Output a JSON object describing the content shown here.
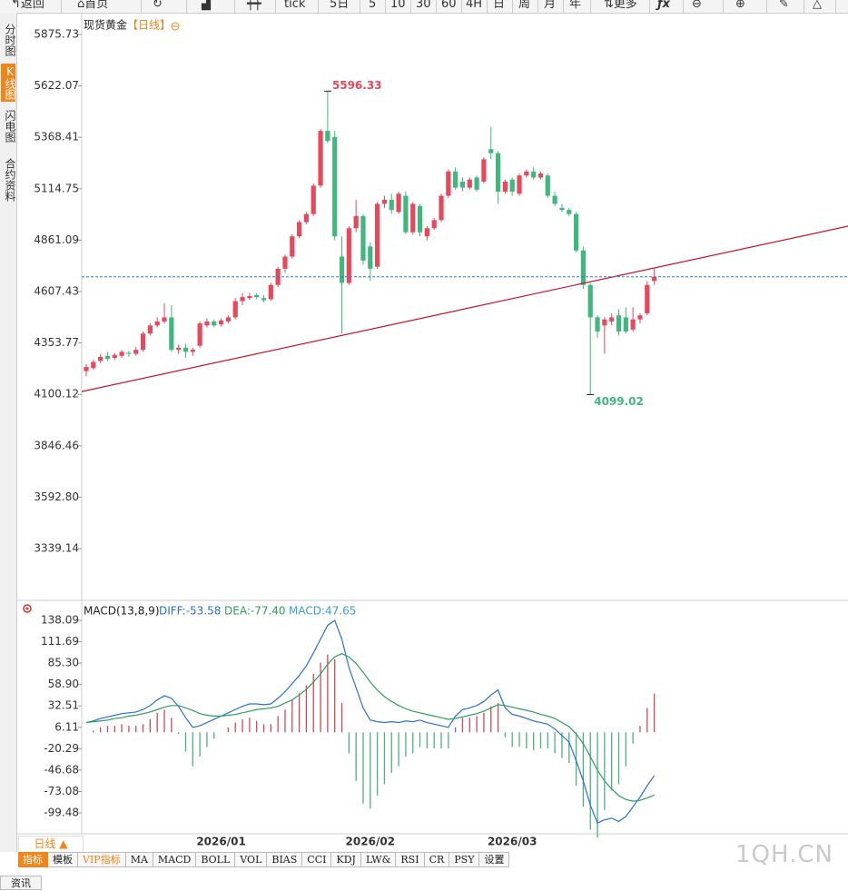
{
  "toolbar": [
    "返回",
    "首页",
    "tick",
    "5日",
    "5",
    "10",
    "30",
    "60",
    "4H",
    "日",
    "周",
    "月",
    "年",
    "更多"
  ],
  "sidebar": [
    "分时图",
    "K线图",
    "闪电图",
    "合约资料"
  ],
  "period_button": "日线 ▲",
  "indicator_tabs": [
    "指标",
    "模板",
    "VIP指标",
    "MA",
    "MACD",
    "BOLL",
    "VOL",
    "BIAS",
    "CCI",
    "KDJ",
    "LW&",
    "RSI",
    "CR",
    "PSY",
    "设置"
  ],
  "watermark": "1QH.CN",
  "footer_tab": "资讯",
  "chart_data": [
    {
      "type": "candlestick",
      "title": "现货黄金",
      "subtitle": "【日线】",
      "up_color": "#e8475c",
      "down_color": "#3fb77d",
      "ylim": [
        3088.2,
        5947.4
      ],
      "yticks": [
        5875.73,
        5622.07,
        5368.41,
        5114.75,
        4861.09,
        4607.43,
        4353.77,
        4100.12,
        3846.46,
        {
          "value": 3592.8,
          "label": "3592.80"
        },
        3339.14
      ],
      "open": [
        4215,
        4230,
        4265,
        4290,
        4280,
        4290,
        4305,
        4300,
        4320,
        4400,
        4440,
        4460,
        4480,
        4320,
        4330,
        4310,
        4340,
        4440,
        4460,
        4445,
        4460,
        4480,
        4560,
        4575,
        4590,
        4575,
        4570,
        4640,
        4720,
        4780,
        4880,
        4950,
        4990,
        5130,
        5400,
        5370,
        4780,
        4650,
        4920,
        4980,
        4830,
        4730,
        5040,
        5060,
        5000,
        5080,
        4900,
        5030,
        4880,
        4920,
        4960,
        5080,
        5200,
        5150,
        5120,
        5170,
        5150,
        5310,
        5290,
        5100,
        5160,
        5090,
        5180,
        5200,
        5170,
        5180,
        5080,
        5020,
        5010,
        4990,
        4810,
        4640,
        4480,
        4440,
        4460,
        4490,
        4480,
        4420,
        4470,
        4500,
        4660
      ],
      "high": [
        4250,
        4270,
        4300,
        4310,
        4305,
        4320,
        4315,
        4335,
        4410,
        4450,
        4480,
        4550,
        4540,
        4345,
        4350,
        4330,
        4460,
        4475,
        4470,
        4475,
        4490,
        4575,
        4600,
        4600,
        4600,
        4590,
        4650,
        4730,
        4790,
        4890,
        4960,
        5000,
        5140,
        5410,
        5596.33,
        5400,
        4880,
        4930,
        5060,
        4990,
        4850,
        5050,
        5080,
        5090,
        5100,
        5100,
        5050,
        5040,
        4930,
        4970,
        5090,
        5210,
        5220,
        5170,
        5170,
        5180,
        5270,
        5420,
        5300,
        5160,
        5170,
        5190,
        5210,
        5220,
        5200,
        5190,
        5100,
        5040,
        5020,
        5000,
        4830,
        4650,
        4490,
        4480,
        4500,
        4520,
        4530,
        4530,
        4500,
        4660,
        4720
      ],
      "low": [
        4190,
        4220,
        4255,
        4265,
        4270,
        4280,
        4285,
        4290,
        4310,
        4390,
        4430,
        4450,
        4310,
        4300,
        4280,
        4290,
        4330,
        4430,
        4430,
        4435,
        4450,
        4470,
        4540,
        4565,
        4570,
        4555,
        4560,
        4630,
        4700,
        4770,
        4870,
        4940,
        4980,
        5120,
        5340,
        4860,
        4400,
        4640,
        4900,
        4740,
        4660,
        4720,
        5020,
        4990,
        4990,
        4890,
        4890,
        4880,
        4860,
        4910,
        4950,
        5070,
        5110,
        5100,
        5110,
        5100,
        5140,
        5260,
        5040,
        5090,
        5080,
        5080,
        5170,
        5160,
        5160,
        5070,
        5030,
        5000,
        4980,
        4800,
        4620,
        4099.02,
        4380,
        4300,
        4440,
        4390,
        4400,
        4410,
        4450,
        4490,
        4640
      ],
      "close": [
        4235,
        4260,
        4285,
        4275,
        4295,
        4310,
        4300,
        4320,
        4400,
        4440,
        4460,
        4480,
        4320,
        4330,
        4310,
        4320,
        4450,
        4460,
        4440,
        4465,
        4480,
        4560,
        4580,
        4585,
        4580,
        4565,
        4640,
        4720,
        4780,
        4880,
        4950,
        4990,
        5130,
        5400,
        5350,
        4880,
        4650,
        4920,
        4980,
        4760,
        4720,
        5040,
        5060,
        5010,
        5090,
        4900,
        5040,
        4900,
        4920,
        4960,
        5080,
        5200,
        5120,
        5120,
        5160,
        5110,
        5260,
        5290,
        5100,
        5150,
        5100,
        5180,
        5200,
        5170,
        5190,
        5080,
        5040,
        5010,
        4990,
        4810,
        4640,
        4480,
        4410,
        4470,
        4480,
        4410,
        4410,
        4470,
        4490,
        4640,
        4680
      ],
      "trend_line": {
        "start": 4114,
        "end": 4930,
        "color": "#c8102e"
      },
      "last_price_line_color": "#2f7fd0"
    },
    {
      "type": "macd",
      "title": "MACD(13,8,9)",
      "legend": [
        "DIFF:-53.58",
        "DEA:-77.40",
        "MACD:47.65"
      ],
      "ylim": [
        -125.25,
        159.4
      ],
      "yticks": [
        138.09,
        111.69,
        {
          "value": 85.3,
          "label": "85.30"
        },
        {
          "value": 58.9,
          "label": "58.90"
        },
        32.51,
        6.11,
        -20.29,
        -46.68,
        -73.08,
        -99.48
      ],
      "categories": [
        null,
        null,
        null,
        null,
        null,
        null,
        null,
        null,
        null,
        null,
        null,
        null,
        null,
        null,
        null,
        null,
        null,
        null,
        null,
        "2026/01",
        null,
        null,
        null,
        null,
        null,
        null,
        null,
        null,
        null,
        null,
        null,
        null,
        null,
        null,
        null,
        null,
        null,
        null,
        null,
        null,
        "2026/02",
        null,
        null,
        null,
        null,
        null,
        null,
        null,
        null,
        null,
        null,
        null,
        null,
        null,
        null,
        null,
        null,
        null,
        null,
        null,
        "2026/03",
        null,
        null,
        null,
        null,
        null,
        null,
        null,
        null,
        null,
        null,
        null,
        null,
        null,
        null,
        null,
        null,
        null,
        null,
        null,
        null
      ],
      "series": [
        {
          "color": "#2b6fd6",
          "values": [
            12,
            14,
            17,
            19,
            21,
            23,
            24,
            25,
            28,
            33,
            40,
            45,
            42,
            32,
            18,
            6,
            8,
            12,
            16,
            20,
            24,
            28,
            32,
            35,
            35,
            34,
            35,
            42,
            50,
            60,
            70,
            82,
            98,
            115,
            132,
            138,
            115,
            80,
            55,
            30,
            15,
            13,
            12,
            13,
            12,
            14,
            13,
            15,
            12,
            10,
            8,
            6,
            20,
            28,
            30,
            33,
            38,
            46,
            52,
            30,
            22,
            20,
            17,
            14,
            12,
            10,
            4,
            -4,
            -12,
            -35,
            -60,
            -90,
            -112,
            -108,
            -106,
            -110,
            -104,
            -92,
            -80,
            -66,
            -53.58
          ]
        },
        {
          "color": "#2f9e5c",
          "values": [
            12,
            13,
            14,
            15,
            17,
            18,
            20,
            21,
            23,
            25,
            28,
            31,
            33,
            33,
            30,
            27,
            23,
            21,
            20,
            20,
            21,
            22,
            24,
            26,
            28,
            29,
            30,
            32,
            36,
            40,
            46,
            53,
            62,
            72,
            84,
            93,
            97,
            93,
            85,
            74,
            62,
            52,
            44,
            38,
            33,
            29,
            26,
            24,
            22,
            20,
            18,
            16,
            17,
            19,
            21,
            23,
            26,
            30,
            34,
            33,
            31,
            29,
            27,
            25,
            22,
            20,
            17,
            12,
            7,
            -2,
            -14,
            -30,
            -47,
            -60,
            -70,
            -78,
            -83,
            -85,
            -84,
            -81,
            -77.4
          ]
        },
        {
          "color": "#3a9fd8",
          "up_color": "#d2465a",
          "down_color": "#4db07f",
          "values": [
            0,
            2,
            6,
            8,
            8,
            10,
            8,
            8,
            10,
            16,
            24,
            28,
            18,
            -2,
            -24,
            -42,
            -30,
            -18,
            -8,
            0,
            6,
            12,
            16,
            18,
            14,
            10,
            10,
            20,
            28,
            40,
            48,
            58,
            72,
            86,
            96,
            90,
            36,
            -26,
            -60,
            -88,
            -94,
            -78,
            -64,
            -50,
            -42,
            -30,
            -26,
            -18,
            -20,
            -20,
            -20,
            -20,
            6,
            18,
            18,
            20,
            24,
            32,
            36,
            -6,
            -18,
            -18,
            -20,
            -22,
            -20,
            -20,
            -26,
            -32,
            -38,
            -66,
            -92,
            -120,
            -130,
            -96,
            -72,
            -64,
            -42,
            -14,
            8,
            30,
            47.65
          ]
        }
      ]
    }
  ]
}
